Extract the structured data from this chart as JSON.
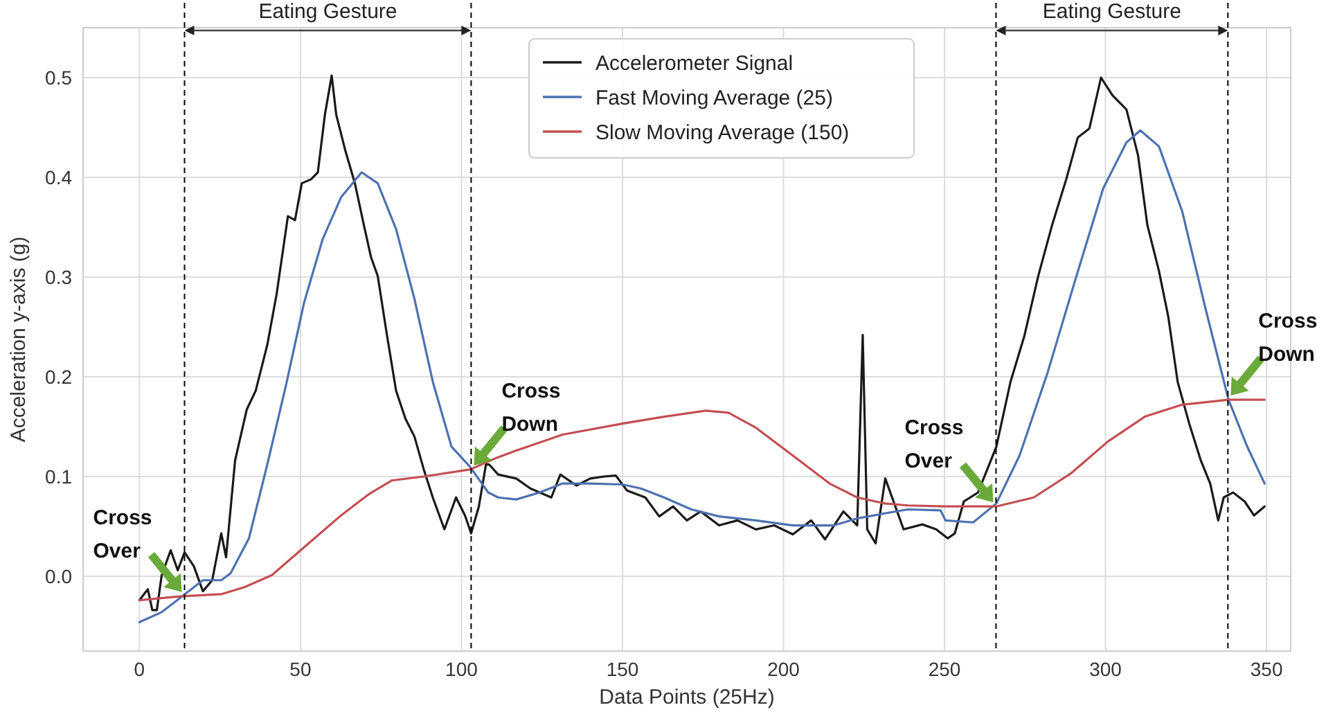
{
  "chart_data": {
    "type": "line",
    "xlabel": "Data Points (25Hz)",
    "ylabel": "Acceleration y-axis (g)",
    "xlim": [
      -17.5,
      357.5
    ],
    "xticks": [
      0,
      50,
      100,
      150,
      200,
      250,
      300,
      350
    ],
    "ylim": [
      -0.075,
      0.55
    ],
    "yticks": [
      {
        "value": 0,
        "label": "0.0"
      },
      0.1,
      0.2,
      0.3,
      0.4,
      0.5
    ],
    "grid": true,
    "legend": "top",
    "line_style": "solid",
    "marker": "none",
    "series": [
      {
        "name": "Accelerometer Signal",
        "color": "#1a1a1a",
        "x": [
          0,
          2.6,
          4,
          5.4,
          6.9,
          9.7,
          11.9,
          14,
          16.9,
          19.7,
          22.6,
          25.4,
          26.9,
          29.7,
          33.3,
          36.1,
          39.7,
          42.6,
          46.1,
          48.3,
          50.4,
          53.3,
          55.4,
          57.6,
          59.7,
          61.1,
          64,
          66.9,
          69.7,
          71.9,
          74,
          76.9,
          79.7,
          82.6,
          85.4,
          88.3,
          91.1,
          94.7,
          98.3,
          101.1,
          103,
          105.4,
          107.6,
          108.6,
          111.4,
          117,
          121.4,
          127.9,
          130.7,
          135.7,
          140,
          144.3,
          147.9,
          151.4,
          157.1,
          161.4,
          165.7,
          170,
          174.3,
          180,
          185.7,
          191.4,
          197.1,
          202.9,
          208.6,
          212.9,
          218.6,
          222.9,
          224.6,
          226,
          228.6,
          231.6,
          237.3,
          243.1,
          247.4,
          251,
          253.2,
          256,
          260.4,
          266.1,
          270.5,
          274.8,
          279.1,
          283.4,
          287.8,
          291.4,
          295,
          298.6,
          302.2,
          306.5,
          310.1,
          313,
          316.6,
          319.5,
          322.4,
          326,
          329.6,
          332.5,
          335,
          336.7,
          339.6,
          343.2,
          346.1,
          349.4
        ],
        "values": [
          -0.024,
          -0.013,
          -0.034,
          -0.034,
          0.001,
          0.026,
          0.006,
          0.024,
          0.01,
          -0.015,
          -0.004,
          0.043,
          0.019,
          0.116,
          0.167,
          0.186,
          0.232,
          0.283,
          0.361,
          0.357,
          0.394,
          0.398,
          0.405,
          0.463,
          0.502,
          0.463,
          0.426,
          0.394,
          0.352,
          0.32,
          0.301,
          0.241,
          0.186,
          0.158,
          0.14,
          0.107,
          0.079,
          0.047,
          0.079,
          0.061,
          0.043,
          0.07,
          0.112,
          0.112,
          0.102,
          0.098,
          0.088,
          0.079,
          0.102,
          0.091,
          0.098,
          0.1,
          0.101,
          0.086,
          0.079,
          0.06,
          0.07,
          0.056,
          0.065,
          0.051,
          0.056,
          0.047,
          0.051,
          0.042,
          0.056,
          0.037,
          0.065,
          0.051,
          0.242,
          0.047,
          0.033,
          0.098,
          0.047,
          0.052,
          0.047,
          0.038,
          0.043,
          0.075,
          0.084,
          0.13,
          0.195,
          0.241,
          0.301,
          0.352,
          0.398,
          0.44,
          0.449,
          0.5,
          0.482,
          0.468,
          0.422,
          0.352,
          0.306,
          0.26,
          0.195,
          0.153,
          0.116,
          0.093,
          0.056,
          0.079,
          0.084,
          0.075,
          0.061,
          0.07
        ]
      },
      {
        "name": "Fast Moving Average (25)",
        "color": "#4c72b0",
        "x": [
          0,
          6.9,
          13.3,
          19.7,
          25.4,
          28.3,
          34,
          39.7,
          45.4,
          51.1,
          56.9,
          62.6,
          69,
          74,
          79.7,
          85.4,
          91.1,
          96.9,
          102.6,
          108.3,
          111.4,
          117,
          124.3,
          131.4,
          140,
          150,
          155.7,
          162.9,
          171.4,
          180,
          191.4,
          202.9,
          215.7,
          222.9,
          231.4,
          238.6,
          248.8,
          250.3,
          258.9,
          266.1,
          273.3,
          282,
          290.6,
          299.3,
          306.5,
          310.8,
          316.6,
          323.8,
          331,
          338.2,
          344,
          349.4
        ],
        "values": [
          -0.046,
          -0.036,
          -0.02,
          -0.004,
          -0.004,
          0.003,
          0.038,
          0.112,
          0.19,
          0.274,
          0.338,
          0.38,
          0.405,
          0.394,
          0.348,
          0.278,
          0.195,
          0.13,
          0.11,
          0.084,
          0.079,
          0.077,
          0.084,
          0.093,
          0.093,
          0.092,
          0.088,
          0.079,
          0.067,
          0.06,
          0.056,
          0.051,
          0.051,
          0.058,
          0.063,
          0.067,
          0.066,
          0.056,
          0.054,
          0.073,
          0.121,
          0.204,
          0.297,
          0.389,
          0.435,
          0.447,
          0.431,
          0.366,
          0.269,
          0.177,
          0.13,
          0.093
        ]
      },
      {
        "name": "Slow Moving Average (150)",
        "color": "#c44e52",
        "x": [
          0,
          13.3,
          25.4,
          32.6,
          41.1,
          51.1,
          62.6,
          71.1,
          78.3,
          88.3,
          102.6,
          111.1,
          117,
          131.4,
          150,
          162.9,
          175.7,
          182.9,
          191.4,
          202.9,
          214.3,
          222.9,
          231.4,
          238.6,
          250,
          266.1,
          277.7,
          289.2,
          300.7,
          312.2,
          323.8,
          338.2,
          349.4
        ],
        "values": [
          -0.024,
          -0.02,
          -0.018,
          -0.011,
          0.001,
          0.029,
          0.061,
          0.082,
          0.096,
          0.1,
          0.107,
          0.119,
          0.126,
          0.142,
          0.153,
          0.16,
          0.166,
          0.164,
          0.149,
          0.121,
          0.093,
          0.079,
          0.073,
          0.071,
          0.07,
          0.07,
          0.079,
          0.103,
          0.135,
          0.16,
          0.172,
          0.177,
          0.177
        ]
      }
    ],
    "ref_lines": [
      {
        "axis": "x",
        "value": 14,
        "color": "#000000",
        "line_style": "dashed"
      },
      {
        "axis": "x",
        "value": 103,
        "color": "#000000",
        "line_style": "dashed"
      },
      {
        "axis": "x",
        "value": 266,
        "color": "#000000",
        "line_style": "dashed"
      },
      {
        "axis": "x",
        "value": 338,
        "color": "#000000",
        "line_style": "dashed"
      }
    ],
    "annotations": [
      "Eating Gesture",
      "Eating Gesture",
      {
        "text": "Cross Over",
        "x": 14,
        "y": -0.02
      },
      {
        "text": "Cross Down",
        "x": 103,
        "y": 0.107
      },
      {
        "text": "Cross Over",
        "x": 266,
        "y": 0.07
      },
      {
        "text": "Cross Down",
        "x": 338,
        "y": 0.177
      }
    ]
  }
}
